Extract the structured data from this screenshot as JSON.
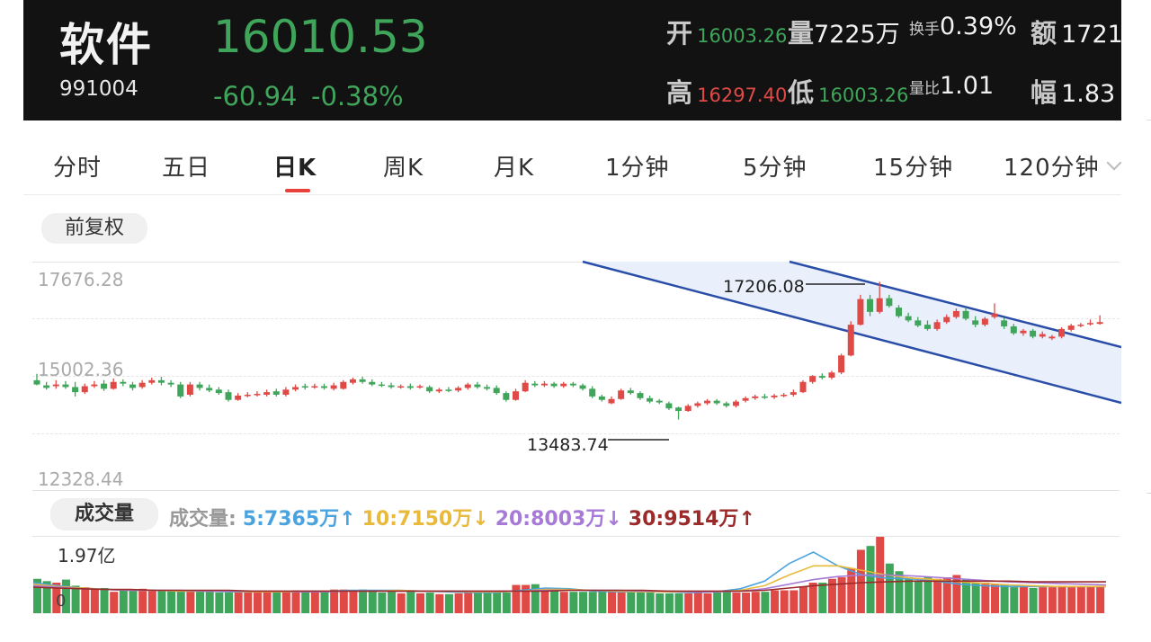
{
  "header": {
    "name": "软件",
    "code": "991004",
    "price": "16010.53",
    "change": "-60.94",
    "change_pct": "-0.38%",
    "open_label": "开",
    "open_value": "16003.26",
    "volume_label": "量",
    "volume_value": "7225万",
    "turnover_label": "换手",
    "turnover_value": "0.39%",
    "amount_label": "额",
    "amount_value": "1721",
    "high_label": "高",
    "high_value": "16297.40",
    "low_label": "低",
    "low_value": "16003.26",
    "vol_ratio_label": "量比",
    "vol_ratio_value": "1.01",
    "range_label": "幅",
    "range_value": "1.83"
  },
  "tabs": [
    {
      "label": "分时"
    },
    {
      "label": "五日"
    },
    {
      "label": "日K"
    },
    {
      "label": "周K"
    },
    {
      "label": "月K"
    },
    {
      "label": "1分钟"
    },
    {
      "label": "5分钟"
    },
    {
      "label": "15分钟"
    },
    {
      "label": "120分钟"
    }
  ],
  "active_tab": "日K",
  "adjust_label": "前复权",
  "price_axis": [
    "17676.28",
    "15002.36",
    "12328.44"
  ],
  "annotations": {
    "high": "17206.08",
    "low": "13483.74"
  },
  "volume_panel": {
    "label": "成交量",
    "legend_title": "成交量:",
    "ma5": "5:7365万",
    "ma10": "10:7150万",
    "ma20": "20:8003万",
    "ma30": "30:9514万",
    "max_label": "1.97亿",
    "zero_label": "0"
  },
  "colors": {
    "up": "#e04a46",
    "down": "#3fa55a",
    "ma5": "#4aa3df",
    "ma10": "#e8b93a",
    "ma20": "#a67ad6",
    "ma30": "#9b2a2a",
    "channel": "#2a4ea8"
  },
  "chart_data": {
    "type": "candlestick",
    "ylim": [
      12328.44,
      17676.28
    ],
    "high_marker": 17206.08,
    "low_marker": 13483.74,
    "candles": [
      [
        14900,
        14800,
        15050,
        14780
      ],
      [
        14780,
        14720,
        14860,
        14680
      ],
      [
        14760,
        14800,
        14900,
        14700
      ],
      [
        14800,
        14740,
        14880,
        14700
      ],
      [
        14740,
        14620,
        14860,
        14520
      ],
      [
        14620,
        14760,
        14820,
        14580
      ],
      [
        14760,
        14800,
        14880,
        14720
      ],
      [
        14820,
        14700,
        14900,
        14650
      ],
      [
        14700,
        14860,
        14940,
        14680
      ],
      [
        14860,
        14820,
        14920,
        14760
      ],
      [
        14800,
        14720,
        14860,
        14660
      ],
      [
        14740,
        14840,
        14900,
        14700
      ],
      [
        14840,
        14900,
        14960,
        14800
      ],
      [
        14900,
        14840,
        14980,
        14780
      ],
      [
        14840,
        14800,
        14900,
        14740
      ],
      [
        14800,
        14520,
        14860,
        14480
      ],
      [
        14560,
        14800,
        14860,
        14520
      ],
      [
        14800,
        14720,
        14860,
        14660
      ],
      [
        14720,
        14660,
        14800,
        14620
      ],
      [
        14680,
        14600,
        14740,
        14560
      ],
      [
        14620,
        14440,
        14680,
        14400
      ],
      [
        14440,
        14540,
        14600,
        14420
      ],
      [
        14540,
        14560,
        14620,
        14500
      ],
      [
        14560,
        14580,
        14640,
        14520
      ],
      [
        14560,
        14620,
        14680,
        14520
      ],
      [
        14640,
        14560,
        14700,
        14520
      ],
      [
        14560,
        14680,
        14740,
        14520
      ],
      [
        14680,
        14740,
        14800,
        14640
      ],
      [
        14760,
        14740,
        14820,
        14680
      ],
      [
        14760,
        14760,
        14820,
        14700
      ],
      [
        14760,
        14720,
        14820,
        14680
      ],
      [
        14700,
        14780,
        14840,
        14660
      ],
      [
        14700,
        14860,
        14900,
        14680
      ],
      [
        14840,
        14920,
        14960,
        14800
      ],
      [
        14920,
        14860,
        14980,
        14820
      ],
      [
        14860,
        14800,
        14920,
        14760
      ],
      [
        14800,
        14780,
        14860,
        14740
      ],
      [
        14780,
        14740,
        14840,
        14700
      ],
      [
        14740,
        14760,
        14800,
        14700
      ],
      [
        14760,
        14720,
        14820,
        14680
      ],
      [
        14740,
        14760,
        14800,
        14700
      ],
      [
        14740,
        14640,
        14780,
        14600
      ],
      [
        14640,
        14680,
        14720,
        14600
      ],
      [
        14680,
        14660,
        14740,
        14620
      ],
      [
        14660,
        14720,
        14760,
        14620
      ],
      [
        14720,
        14800,
        14840,
        14680
      ],
      [
        14800,
        14740,
        14860,
        14700
      ],
      [
        14740,
        14700,
        14800,
        14660
      ],
      [
        14720,
        14600,
        14780,
        14560
      ],
      [
        14600,
        14440,
        14640,
        14400
      ],
      [
        14440,
        14640,
        14700,
        14420
      ],
      [
        14640,
        14840,
        14900,
        14620
      ],
      [
        14820,
        14780,
        14880,
        14740
      ],
      [
        14780,
        14820,
        14880,
        14740
      ],
      [
        14820,
        14760,
        14860,
        14720
      ],
      [
        14760,
        14820,
        14860,
        14720
      ],
      [
        14820,
        14780,
        14860,
        14740
      ],
      [
        14780,
        14700,
        14820,
        14660
      ],
      [
        14700,
        14520,
        14760,
        14480
      ],
      [
        14520,
        14440,
        14560,
        14400
      ],
      [
        14360,
        14460,
        14520,
        14340
      ],
      [
        14460,
        14660,
        14700,
        14440
      ],
      [
        14660,
        14600,
        14720,
        14560
      ],
      [
        14600,
        14480,
        14640,
        14440
      ],
      [
        14480,
        14400,
        14540,
        14360
      ],
      [
        14420,
        14380,
        14460,
        14340
      ],
      [
        14360,
        14240,
        14400,
        14200
      ],
      [
        14260,
        14180,
        14280,
        13980
      ],
      [
        14180,
        14300,
        14340,
        14160
      ],
      [
        14300,
        14360,
        14400,
        14260
      ],
      [
        14360,
        14420,
        14460,
        14320
      ],
      [
        14420,
        14360,
        14460,
        14320
      ],
      [
        14360,
        14300,
        14400,
        14260
      ],
      [
        14300,
        14400,
        14440,
        14260
      ],
      [
        14420,
        14480,
        14520,
        14380
      ],
      [
        14480,
        14520,
        14560,
        14440
      ],
      [
        14520,
        14500,
        14580,
        14460
      ],
      [
        14500,
        14540,
        14580,
        14460
      ],
      [
        14540,
        14560,
        14600,
        14500
      ],
      [
        14560,
        14620,
        14680,
        14520
      ],
      [
        14620,
        14860,
        14900,
        14600
      ],
      [
        14860,
        15000,
        15020,
        14820
      ],
      [
        15000,
        14960,
        15060,
        14920
      ],
      [
        14960,
        15080,
        15120,
        14920
      ],
      [
        15080,
        15480,
        15520,
        15040
      ],
      [
        15480,
        16200,
        16280,
        15460
      ],
      [
        16200,
        16800,
        16900,
        16180
      ],
      [
        16800,
        16500,
        16900,
        16400
      ],
      [
        16500,
        16820,
        17206,
        16460
      ],
      [
        16820,
        16640,
        16900,
        16600
      ],
      [
        16600,
        16400,
        16660,
        16360
      ],
      [
        16400,
        16300,
        16480,
        16260
      ],
      [
        16300,
        16180,
        16380,
        16140
      ],
      [
        16200,
        16100,
        16300,
        16060
      ],
      [
        16100,
        16260,
        16320,
        16060
      ],
      [
        16260,
        16380,
        16440,
        16220
      ],
      [
        16380,
        16520,
        16580,
        16340
      ],
      [
        16520,
        16340,
        16600,
        16300
      ],
      [
        16300,
        16200,
        16400,
        16140
      ],
      [
        16200,
        16340,
        16380,
        16160
      ],
      [
        16380,
        16460,
        16700,
        16340
      ],
      [
        16300,
        16160,
        16360,
        16100
      ],
      [
        16160,
        16000,
        16220,
        15960
      ],
      [
        16000,
        16060,
        16100,
        15940
      ],
      [
        16060,
        15920,
        16100,
        15880
      ],
      [
        15920,
        15980,
        16040,
        15880
      ],
      [
        15880,
        15920,
        15960,
        15840
      ],
      [
        15920,
        16100,
        16140,
        15880
      ],
      [
        16080,
        16180,
        16220,
        16040
      ],
      [
        16180,
        16200,
        16240,
        16140
      ],
      [
        16220,
        16240,
        16320,
        16180
      ],
      [
        16220,
        16260,
        16420,
        16200
      ]
    ]
  },
  "volume_data": [
    0.45,
    0.42,
    0.4,
    0.44,
    0.36,
    0.34,
    0.32,
    0.33,
    0.28,
    0.3,
    0.3,
    0.32,
    0.3,
    0.3,
    0.29,
    0.3,
    0.29,
    0.3,
    0.29,
    0.27,
    0.27,
    0.28,
    0.28,
    0.27,
    0.28,
    0.28,
    0.28,
    0.3,
    0.3,
    0.3,
    0.3,
    0.31,
    0.31,
    0.3,
    0.31,
    0.3,
    0.27,
    0.28,
    0.26,
    0.28,
    0.26,
    0.27,
    0.25,
    0.25,
    0.26,
    0.28,
    0.27,
    0.28,
    0.28,
    0.27,
    0.37,
    0.37,
    0.38,
    0.32,
    0.31,
    0.28,
    0.28,
    0.28,
    0.28,
    0.3,
    0.3,
    0.3,
    0.28,
    0.28,
    0.27,
    0.26,
    0.26,
    0.26,
    0.26,
    0.27,
    0.26,
    0.27,
    0.28,
    0.27,
    0.27,
    0.28,
    0.28,
    0.3,
    0.3,
    0.3,
    0.35,
    0.4,
    0.4,
    0.45,
    0.47,
    0.59,
    0.83,
    0.88,
    1.0,
    0.65,
    0.55,
    0.47,
    0.43,
    0.47,
    0.45,
    0.47,
    0.5,
    0.45,
    0.4,
    0.4,
    0.38,
    0.38,
    0.34,
    0.35,
    0.33,
    0.34,
    0.34,
    0.36,
    0.34,
    0.35,
    0.35,
    0.36
  ],
  "ma_lines": {
    "ma5": [
      0.4,
      0.36,
      0.33,
      0.31,
      0.3,
      0.3,
      0.29,
      0.29,
      0.28,
      0.28,
      0.28,
      0.29,
      0.29,
      0.3,
      0.3,
      0.3,
      0.29,
      0.28,
      0.27,
      0.27,
      0.3,
      0.33,
      0.32,
      0.29,
      0.28,
      0.28,
      0.28,
      0.27,
      0.28,
      0.32,
      0.42,
      0.65,
      0.8,
      0.62,
      0.5,
      0.46,
      0.45,
      0.42,
      0.38,
      0.36,
      0.35,
      0.35,
      0.35,
      0.35,
      0.35
    ],
    "ma10": [
      0.38,
      0.35,
      0.33,
      0.31,
      0.3,
      0.3,
      0.29,
      0.29,
      0.29,
      0.28,
      0.28,
      0.28,
      0.29,
      0.29,
      0.29,
      0.3,
      0.29,
      0.29,
      0.28,
      0.28,
      0.29,
      0.31,
      0.31,
      0.3,
      0.29,
      0.28,
      0.28,
      0.28,
      0.28,
      0.3,
      0.36,
      0.5,
      0.62,
      0.62,
      0.56,
      0.5,
      0.46,
      0.44,
      0.41,
      0.39,
      0.37,
      0.36,
      0.35,
      0.35,
      0.35
    ],
    "ma20": [
      0.36,
      0.34,
      0.32,
      0.31,
      0.3,
      0.3,
      0.3,
      0.29,
      0.29,
      0.29,
      0.29,
      0.28,
      0.28,
      0.29,
      0.29,
      0.29,
      0.29,
      0.29,
      0.29,
      0.29,
      0.29,
      0.3,
      0.3,
      0.3,
      0.3,
      0.29,
      0.29,
      0.28,
      0.28,
      0.29,
      0.32,
      0.38,
      0.44,
      0.48,
      0.5,
      0.5,
      0.49,
      0.47,
      0.45,
      0.43,
      0.41,
      0.4,
      0.39,
      0.38,
      0.37
    ],
    "ma30": [
      0.34,
      0.33,
      0.32,
      0.31,
      0.31,
      0.3,
      0.3,
      0.3,
      0.3,
      0.29,
      0.29,
      0.29,
      0.29,
      0.29,
      0.29,
      0.29,
      0.29,
      0.29,
      0.29,
      0.29,
      0.29,
      0.29,
      0.3,
      0.3,
      0.3,
      0.3,
      0.29,
      0.29,
      0.29,
      0.29,
      0.3,
      0.33,
      0.36,
      0.38,
      0.4,
      0.41,
      0.42,
      0.42,
      0.42,
      0.42,
      0.42,
      0.41,
      0.41,
      0.41,
      0.41
    ]
  }
}
